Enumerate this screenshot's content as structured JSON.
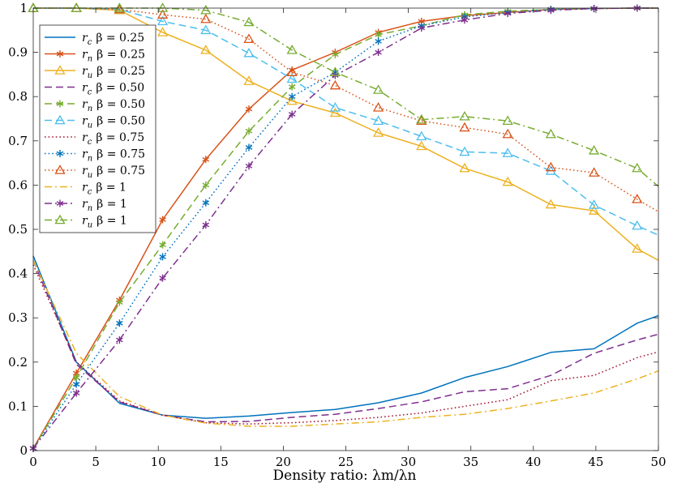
{
  "chart_data": {
    "type": "line",
    "title": "",
    "xlabel": "Density ratio: λm/λn",
    "ylabel": "",
    "xlim": [
      0,
      50
    ],
    "ylim": [
      0,
      1
    ],
    "xticks": [
      0,
      5,
      10,
      15,
      20,
      25,
      30,
      35,
      40,
      45,
      50
    ],
    "yticks": [
      0,
      0.1,
      0.2,
      0.3,
      0.4,
      0.5,
      0.6,
      0.7,
      0.8,
      0.9,
      1
    ],
    "ytick_labels": [
      "0",
      "0.1",
      "0.2",
      "0.3",
      "0.4",
      "0.5",
      "0.6",
      "0.7",
      "0.8",
      "0.9",
      "1"
    ],
    "grid": false,
    "legend_position": "top-left",
    "x": [
      0,
      3.45,
      6.9,
      10.35,
      13.8,
      17.25,
      20.7,
      24.15,
      27.6,
      31.05,
      34.5,
      37.95,
      41.4,
      44.85,
      48.3,
      50
    ],
    "series": [
      {
        "name": "r_c β = 0.25",
        "label_base": "r",
        "label_sub": "c",
        "label_rest": "β = 0.25",
        "color": "#0072BD",
        "dash": "solid",
        "marker": "none",
        "values": [
          0.44,
          0.2,
          0.107,
          0.08,
          0.073,
          0.078,
          0.086,
          0.093,
          0.108,
          0.13,
          0.165,
          0.19,
          0.222,
          0.23,
          0.288,
          0.305
        ]
      },
      {
        "name": "r_n β = 0.25",
        "label_base": "r",
        "label_sub": "n",
        "label_rest": "β = 0.25",
        "color": "#D95319",
        "dash": "solid",
        "marker": "asterisk",
        "values": [
          0.005,
          0.175,
          0.34,
          0.522,
          0.658,
          0.772,
          0.86,
          0.9,
          0.945,
          0.97,
          0.983,
          0.99,
          0.997,
          0.999,
          1.0,
          1.0
        ]
      },
      {
        "name": "r_u β = 0.25",
        "label_base": "r",
        "label_sub": "u",
        "label_rest": "β = 0.25",
        "color": "#EDB120",
        "dash": "solid",
        "marker": "triangle",
        "values": [
          1.0,
          1.0,
          0.995,
          0.945,
          0.905,
          0.835,
          0.79,
          0.763,
          0.718,
          0.688,
          0.638,
          0.607,
          0.556,
          0.542,
          0.456,
          0.43
        ]
      },
      {
        "name": "r_c β = 0.50",
        "label_base": "r",
        "label_sub": "c",
        "label_rest": "β = 0.50",
        "color": "#7E2F8E",
        "dash": "dashed",
        "marker": "none",
        "values": [
          0.43,
          0.195,
          0.11,
          0.08,
          0.065,
          0.066,
          0.075,
          0.082,
          0.095,
          0.11,
          0.133,
          0.14,
          0.17,
          0.22,
          0.25,
          0.263
        ]
      },
      {
        "name": "r_n β = 0.50",
        "label_base": "r",
        "label_sub": "n",
        "label_rest": "β = 0.50",
        "color": "#77AC30",
        "dash": "dashed",
        "marker": "asterisk",
        "values": [
          0.005,
          0.165,
          0.335,
          0.465,
          0.6,
          0.722,
          0.822,
          0.895,
          0.94,
          0.96,
          0.985,
          0.993,
          0.997,
          0.999,
          1.0,
          1.0
        ]
      },
      {
        "name": "r_u β = 0.50",
        "label_base": "r",
        "label_sub": "u",
        "label_rest": "β = 0.50",
        "color": "#4DBEEE",
        "dash": "dashed",
        "marker": "triangle",
        "values": [
          1.0,
          1.0,
          0.997,
          0.97,
          0.95,
          0.898,
          0.84,
          0.775,
          0.745,
          0.71,
          0.675,
          0.672,
          0.632,
          0.555,
          0.508,
          0.487
        ]
      },
      {
        "name": "r_c β = 0.75",
        "label_base": "r",
        "label_sub": "c",
        "label_rest": "β = 0.75",
        "color": "#A2142F",
        "dash": "dotted",
        "marker": "none",
        "values": [
          0.42,
          0.2,
          0.112,
          0.08,
          0.063,
          0.06,
          0.063,
          0.068,
          0.075,
          0.085,
          0.1,
          0.115,
          0.158,
          0.17,
          0.21,
          0.223
        ]
      },
      {
        "name": "r_n β = 0.75",
        "label_base": "r",
        "label_sub": "n",
        "label_rest": "β = 0.75",
        "color": "#0072BD",
        "dash": "dotted",
        "marker": "asterisk",
        "values": [
          0.005,
          0.15,
          0.288,
          0.438,
          0.56,
          0.685,
          0.8,
          0.855,
          0.925,
          0.96,
          0.98,
          0.99,
          0.997,
          0.999,
          1.0,
          1.0
        ]
      },
      {
        "name": "r_u β = 0.75",
        "label_base": "r",
        "label_sub": "u",
        "label_rest": "β = 0.75",
        "color": "#D95319",
        "dash": "dotted",
        "marker": "triangle",
        "values": [
          1.0,
          1.0,
          0.997,
          0.985,
          0.975,
          0.93,
          0.855,
          0.825,
          0.775,
          0.745,
          0.73,
          0.715,
          0.64,
          0.628,
          0.568,
          0.54
        ]
      },
      {
        "name": "r_c β = 1",
        "label_base": "r",
        "label_sub": "c",
        "label_rest": "β = 1",
        "color": "#EDB120",
        "dash": "dashdot",
        "marker": "none",
        "values": [
          0.43,
          0.22,
          0.122,
          0.08,
          0.062,
          0.055,
          0.055,
          0.06,
          0.065,
          0.075,
          0.082,
          0.095,
          0.112,
          0.13,
          0.162,
          0.18
        ]
      },
      {
        "name": "r_n β = 1",
        "label_base": "r",
        "label_sub": "n",
        "label_rest": "β = 1",
        "color": "#7E2F8E",
        "dash": "dashdot",
        "marker": "asterisk",
        "values": [
          0.005,
          0.13,
          0.25,
          0.39,
          0.51,
          0.643,
          0.76,
          0.848,
          0.9,
          0.955,
          0.973,
          0.988,
          0.995,
          0.999,
          1.0,
          1.0
        ]
      },
      {
        "name": "r_u β = 1",
        "label_base": "r",
        "label_sub": "u",
        "label_rest": "β = 1",
        "color": "#77AC30",
        "dash": "dashdot",
        "marker": "triangle",
        "values": [
          1.0,
          1.0,
          1.0,
          1.0,
          0.995,
          0.968,
          0.905,
          0.855,
          0.815,
          0.748,
          0.755,
          0.745,
          0.715,
          0.678,
          0.638,
          0.597
        ]
      }
    ]
  }
}
